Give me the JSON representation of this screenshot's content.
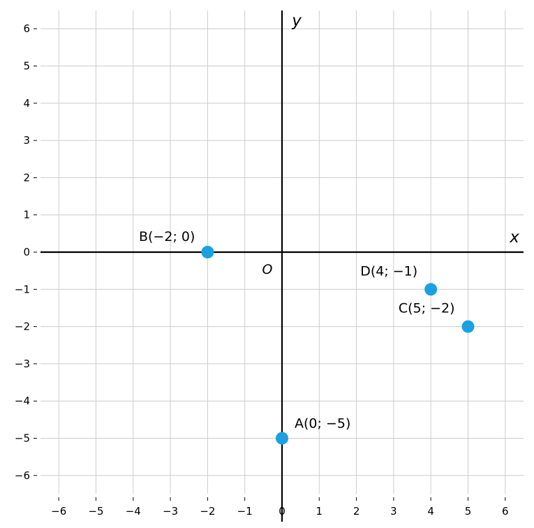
{
  "chart_data": {
    "type": "scatter",
    "title": "",
    "xlabel": "x",
    "ylabel": "y",
    "origin_label": "O",
    "xlim": [
      -6.5,
      6.5
    ],
    "ylim": [
      -6.5,
      6.5
    ],
    "grid": true,
    "x_ticks": [
      -6,
      -5,
      -4,
      -3,
      -2,
      -1,
      0,
      1,
      2,
      3,
      4,
      5,
      6
    ],
    "y_ticks": [
      -6,
      -5,
      -4,
      -3,
      -2,
      -1,
      0,
      1,
      2,
      3,
      4,
      5,
      6
    ],
    "x_tick_labels": [
      "−6",
      "−5",
      "−4",
      "−3",
      "−2",
      "−1",
      "0",
      "1",
      "2",
      "3",
      "4",
      "5",
      "6"
    ],
    "y_tick_labels": [
      "−6",
      "−5",
      "−4",
      "−3",
      "−2",
      "−1",
      "0",
      "1",
      "2",
      "3",
      "4",
      "5",
      "6"
    ],
    "points": [
      {
        "label": "A(0; −5)",
        "x": 0,
        "y": -5
      },
      {
        "label": "B(−2; 0)",
        "x": -2,
        "y": 0
      },
      {
        "label": "C(5; −2)",
        "x": 5,
        "y": -2
      },
      {
        "label": "D(4; −1)",
        "x": 4,
        "y": -1
      }
    ],
    "colors": {
      "point": "#1ba1e2",
      "grid": "#cccccc",
      "axis": "#000000"
    }
  }
}
